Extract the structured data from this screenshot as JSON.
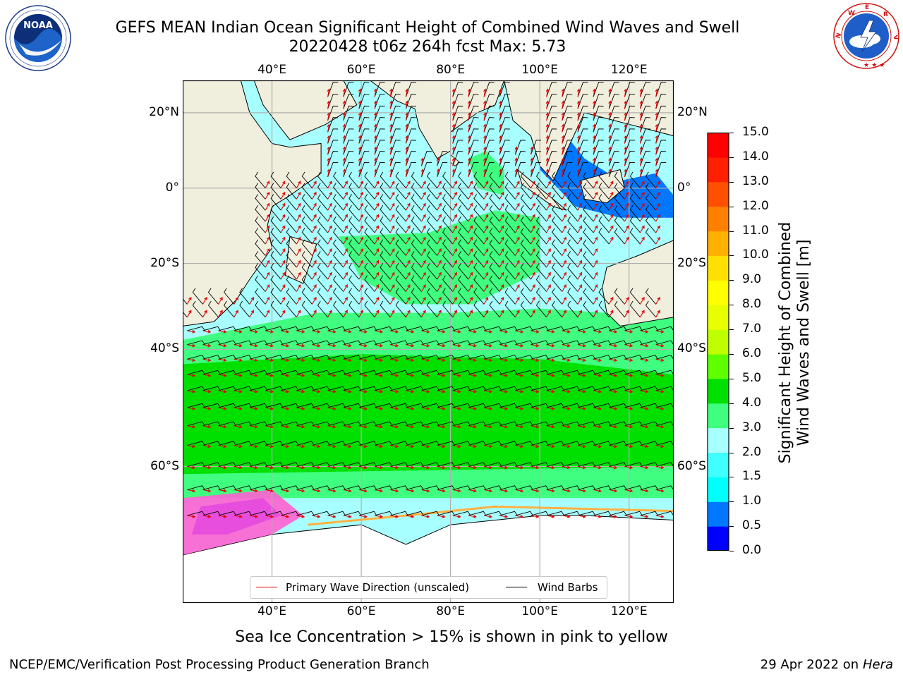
{
  "title_line1": "GEFS MEAN Indian Ocean Significant Height of Combined Wind Waves and Swell",
  "title_line2": "20220428 t06z 264h fcst   Max: 5.73",
  "logos": {
    "left": {
      "name": "noaa-logo",
      "text": "NOAA",
      "ring_text": "NATIONAL OCEANIC AND ATMOSPHERIC ADMINISTRATION · U.S. DEPARTMENT OF COMMERCE"
    },
    "right": {
      "name": "nws-logo",
      "ring_text": "NATIONAL WEATHER SERVICE"
    }
  },
  "map": {
    "lon_range": [
      20,
      130
    ],
    "lat_range": [
      -74,
      28
    ],
    "lon_ticks": [
      40,
      60,
      80,
      100,
      120
    ],
    "lat_ticks": [
      20,
      0,
      -20,
      -40,
      -60
    ],
    "lon_tick_labels": [
      "40°E",
      "60°E",
      "80°E",
      "100°E",
      "120°E"
    ],
    "lat_tick_labels": [
      "20°N",
      "0°",
      "20°S",
      "40°S",
      "60°S"
    ],
    "grid": true,
    "colors": {
      "land": "#f0eedc",
      "sea_ice_free_land": "#ffffff",
      "arrow": "#e00000",
      "barb": "#000000",
      "ice_pink": "#ff60d0",
      "ice_magenta": "#e040e0"
    }
  },
  "colorbar": {
    "label": "Significant Height of Combined Wind Waves and Swell [m]",
    "label_line1": "Significant Height of Combined",
    "label_line2": "Wind Waves and Swell [m]",
    "ticks": [
      "0.0",
      "0.5",
      "1.0",
      "1.5",
      "2.0",
      "3.0",
      "4.0",
      "5.0",
      "6.0",
      "7.0",
      "8.0",
      "9.0",
      "10.0",
      "11.0",
      "12.0",
      "13.0",
      "14.0",
      "15.0"
    ],
    "colors": [
      "#0000ff",
      "#0077ff",
      "#00ffff",
      "#40ffff",
      "#a8ffff",
      "#40ff80",
      "#00e000",
      "#60ff00",
      "#c0ff00",
      "#e8ff00",
      "#ffff00",
      "#ffe000",
      "#ffb000",
      "#ff8000",
      "#ff5000",
      "#ff2000",
      "#ff0000"
    ]
  },
  "legend": {
    "primary_wave": "Primary Wave Direction (unscaled)",
    "wind_barbs": "Wind Barbs"
  },
  "sea_ice_note": "Sea Ice Concentration > 15% is shown in pink to yellow",
  "footer_left": "NCEP/EMC/Verification Post Processing Product Generation Branch",
  "footer_right_prefix": "29 Apr 2022 on ",
  "footer_right_host": "Hera"
}
